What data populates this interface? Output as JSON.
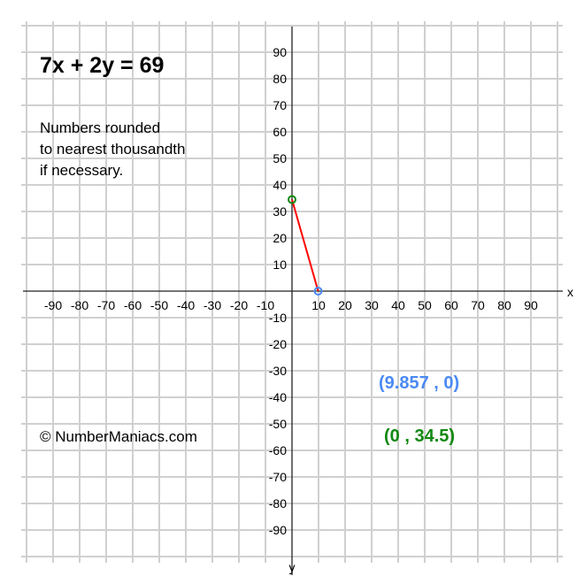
{
  "title": "7x + 2y = 69",
  "note_lines": [
    "Numbers rounded",
    "to nearest thousandth",
    "if necessary."
  ],
  "copyright": "© NumberManiacs.com",
  "chart_data": {
    "type": "line",
    "title": "7x + 2y = 69",
    "xlabel": "x",
    "ylabel": "y",
    "xlim": [
      -100,
      100
    ],
    "ylim": [
      -100,
      100
    ],
    "grid": true,
    "x_ticks": [
      -90,
      -80,
      -70,
      -60,
      -50,
      -40,
      -30,
      -20,
      -10,
      10,
      20,
      30,
      40,
      50,
      60,
      70,
      80,
      90
    ],
    "y_ticks": [
      90,
      80,
      70,
      60,
      50,
      40,
      30,
      20,
      10,
      -10,
      -20,
      -30,
      -40,
      -50,
      -60,
      -70,
      -80,
      -90
    ],
    "series": [
      {
        "points": [
          {
            "x": 9.857,
            "y": 0
          },
          {
            "x": 0,
            "y": 34.5
          }
        ],
        "color": "#ff0000"
      }
    ],
    "points": [
      {
        "x": 9.857,
        "y": 0,
        "label": "(9.857 , 0)",
        "color": "#4a8af4"
      },
      {
        "x": 0,
        "y": 34.5,
        "label": "(0 , 34.5)",
        "color": "#118811"
      }
    ]
  }
}
